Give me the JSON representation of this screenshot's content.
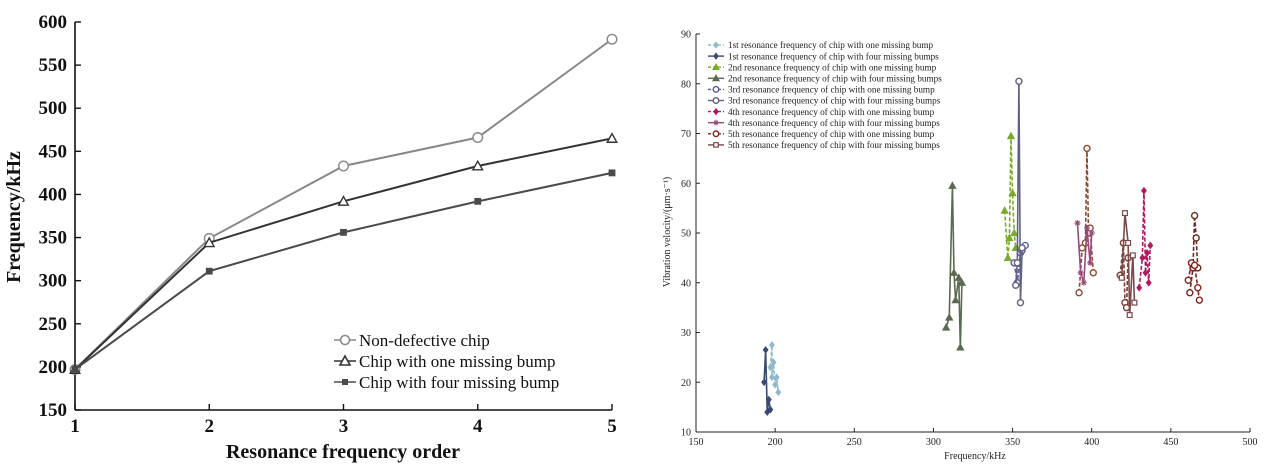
{
  "chart_data": [
    {
      "type": "line",
      "title": "",
      "xlabel": "Resonance frequency order",
      "ylabel": "Frequency/kHz",
      "xlim": [
        1,
        5
      ],
      "ylim": [
        150,
        600
      ],
      "xticks": [
        1,
        2,
        3,
        4,
        5
      ],
      "yticks": [
        150,
        200,
        250,
        300,
        350,
        400,
        450,
        500,
        550,
        600
      ],
      "legend_position": "bottom-right",
      "x": [
        1,
        2,
        3,
        4,
        5
      ],
      "series": [
        {
          "name": "Non-defective chip",
          "color": "#888888",
          "marker": "circle",
          "values": [
            197,
            349,
            433,
            466,
            580
          ]
        },
        {
          "name": "Chip with one missing bump",
          "color": "#333333",
          "marker": "triangle",
          "values": [
            197,
            344,
            392,
            433,
            465
          ]
        },
        {
          "name": "Chip with four missing bump",
          "color": "#4a4a4a",
          "marker": "square",
          "values": [
            197,
            311,
            356,
            392,
            425
          ]
        }
      ]
    },
    {
      "type": "line",
      "title": "",
      "xlabel": "Frequency/kHz",
      "ylabel": "Vibration velocity/(μm·s⁻¹)",
      "xlim": [
        150,
        500
      ],
      "ylim": [
        10,
        90
      ],
      "xticks": [
        150,
        200,
        250,
        300,
        350,
        400,
        450,
        500
      ],
      "yticks": [
        10,
        20,
        30,
        40,
        50,
        60,
        70,
        80,
        90
      ],
      "legend_position": "top-left",
      "series": [
        {
          "name": "1st resonance frequency of chip with one missing bump",
          "color": "#8fb8c8",
          "dash": "dashed",
          "marker": "diamond",
          "x": [
            197,
            198,
            198,
            199,
            200,
            201,
            202
          ],
          "y": [
            23,
            27.5,
            21,
            24,
            19.5,
            21,
            18
          ]
        },
        {
          "name": "1st resonance frequency of chip with four missing bumps",
          "color": "#3a4a70",
          "dash": "solid",
          "marker": "diamond",
          "x": [
            193,
            194,
            195,
            196,
            197
          ],
          "y": [
            20,
            26.5,
            14,
            16.5,
            14.5
          ]
        },
        {
          "name": "2nd resonance frequency of chip with one missing bump",
          "color": "#7aaa2a",
          "dash": "dashed",
          "marker": "triangle",
          "x": [
            345,
            347,
            348,
            349,
            350,
            351,
            352
          ],
          "y": [
            54.5,
            45,
            49,
            69.5,
            58,
            50,
            47
          ]
        },
        {
          "name": "2nd resonance frequency of chip with four missing bumps",
          "color": "#5a6a50",
          "dash": "solid",
          "marker": "triangle",
          "x": [
            308,
            310,
            312,
            313,
            314,
            316,
            317,
            318
          ],
          "y": [
            31,
            33,
            59.5,
            42,
            36.5,
            41,
            27,
            40
          ]
        },
        {
          "name": "3rd resonance frequency of chip with one missing bump",
          "color": "#5a5aa0",
          "dash": "dashed",
          "marker": "circle",
          "x": [
            351,
            353,
            355,
            356,
            358
          ],
          "y": [
            44,
            40,
            46,
            46.5,
            47.5
          ]
        },
        {
          "name": "3rd resonance frequency of chip with four missing bumps",
          "color": "#606080",
          "dash": "solid",
          "marker": "circle",
          "x": [
            352,
            353,
            354,
            355,
            356
          ],
          "y": [
            39.5,
            44,
            80.5,
            36,
            47
          ]
        },
        {
          "name": "4th resonance frequency of chip with one missing bump",
          "color": "#b01860",
          "dash": "dashed",
          "marker": "diamond",
          "x": [
            430,
            432,
            433,
            434,
            435,
            436,
            437
          ],
          "y": [
            39,
            45,
            58.5,
            42,
            46,
            40,
            47.5
          ]
        },
        {
          "name": "4th resonance frequency of chip with four missing bumps",
          "color": "#9a4a7a",
          "dash": "solid",
          "marker": "star",
          "x": [
            391,
            393,
            395,
            397,
            399,
            400
          ],
          "y": [
            52,
            42,
            40,
            51,
            44,
            50
          ]
        },
        {
          "name": "5th resonance frequency of chip with one missing bump",
          "color": "#8a2020",
          "dash": "dashed",
          "marker": "circle",
          "x": [
            461,
            463,
            465,
            467,
            468
          ],
          "y": [
            40.5,
            44,
            43.5,
            39,
            36.5
          ]
        },
        {
          "name": "5th resonance frequency of chip with four missing bumps",
          "color": "#7a4a4a",
          "dash": "solid",
          "marker": "square",
          "x": [
            419,
            421,
            423,
            424,
            426,
            427
          ],
          "y": [
            41,
            54,
            48,
            33.5,
            45.5,
            36
          ]
        }
      ]
    }
  ],
  "extra_series_right": [
    {
      "color": "#8a4a30",
      "x": [
        392,
        394,
        396,
        397,
        398,
        399,
        401
      ],
      "y": [
        38,
        47,
        48,
        67,
        50,
        51,
        42
      ]
    },
    {
      "color": "#7a3a30",
      "x": [
        418,
        420,
        421,
        422,
        423
      ],
      "y": [
        41.5,
        48,
        36,
        35,
        45
      ]
    },
    {
      "color": "#6a2a20",
      "x": [
        462,
        464,
        465,
        466,
        467
      ],
      "y": [
        38,
        43,
        53.5,
        49,
        43
      ]
    }
  ]
}
